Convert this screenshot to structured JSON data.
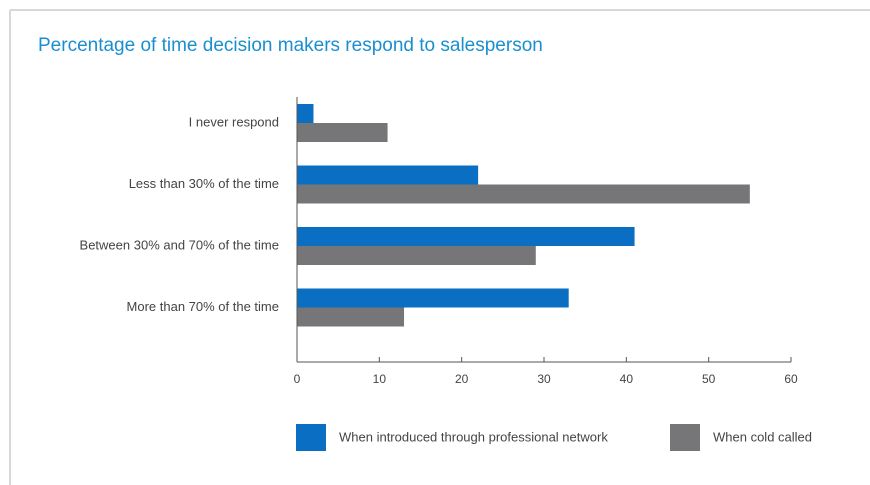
{
  "chart_data": {
    "type": "hbar",
    "title": "Percentage of time decision makers respond to salesperson",
    "categories": [
      "I never respond",
      "Less than 30% of the time",
      "Between 30% and 70% of the time",
      "More than 70% of the time"
    ],
    "series": [
      {
        "name": "When introduced through professional network",
        "color": "#0a6fc2",
        "values": [
          2,
          22,
          41,
          33
        ]
      },
      {
        "name": "When cold called",
        "color": "#767679",
        "values": [
          11,
          55,
          29,
          13
        ]
      }
    ],
    "xlim": [
      0,
      60
    ],
    "xticks": [
      0,
      10,
      20,
      30,
      40,
      50,
      60
    ],
    "legend": "bottom"
  }
}
